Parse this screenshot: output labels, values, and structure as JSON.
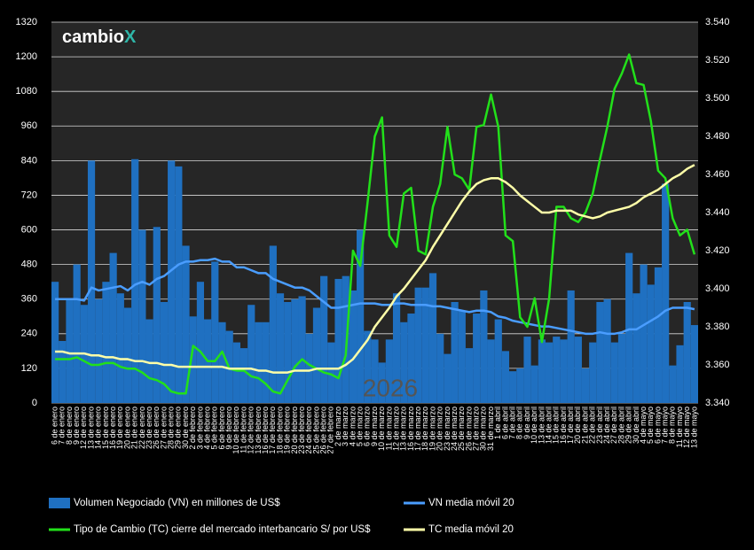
{
  "chart_data": {
    "type": "bar",
    "logo_text": "cambio",
    "logo_mark": "X",
    "annotation": "2026",
    "categories": [
      "6 de enero",
      "7 de enero",
      "8 de enero",
      "9 de enero",
      "12 de enero",
      "13 de enero",
      "14 de enero",
      "15 de enero",
      "16 de enero",
      "19 de enero",
      "20 de enero",
      "21 de enero",
      "22 de enero",
      "23 de enero",
      "26 de enero",
      "27 de enero",
      "28 de enero",
      "29 de enero",
      "30 de enero",
      "2 de febrero",
      "3 de febrero",
      "4 de febrero",
      "5 de febrero",
      "6 de febrero",
      "9 de febrero",
      "10 de febrero",
      "11 de febrero",
      "12 de febrero",
      "13 de febrero",
      "16 de febrero",
      "17 de febrero",
      "18 de febrero",
      "19 de febrero",
      "20 de febrero",
      "23 de febrero",
      "24 de febrero",
      "25 de febrero",
      "26 de febrero",
      "27 de febrero",
      "2 de marzo",
      "3 de marzo",
      "4 de marzo",
      "5 de marzo",
      "6 de marzo",
      "9 de marzo",
      "10 de marzo",
      "11 de marzo",
      "12 de marzo",
      "13 de marzo",
      "16 de marzo",
      "17 de marzo",
      "18 de marzo",
      "19 de marzo",
      "20 de marzo",
      "23 de marzo",
      "24 de marzo",
      "25 de marzo",
      "26 de marzo",
      "27 de marzo",
      "30 de marzo",
      "31 de marzo",
      "1 de abril",
      "6 de abril",
      "7 de abril",
      "8 de abril",
      "9 de abril",
      "10 de abril",
      "13 de abril",
      "14 de abril",
      "15 de abril",
      "16 de abril",
      "17 de abril",
      "20 de abril",
      "21 de abril",
      "22 de abril",
      "23 de abril",
      "24 de abril",
      "27 de abril",
      "28 de abril",
      "29 de abril",
      "30 de abril",
      "4 de mayo",
      "5 de mayo",
      "6 de mayo",
      "7 de mayo",
      "8 de mayo",
      "11 de mayo",
      "12 de mayo",
      "13 de mayo"
    ],
    "series": [
      {
        "name": "Volumen Negociado (VN) en millones de US$",
        "type": "bar",
        "axis": "y",
        "color": "#1f70c1",
        "values": [
          420,
          215,
          360,
          480,
          340,
          840,
          360,
          420,
          520,
          380,
          330,
          845,
          600,
          290,
          610,
          350,
          840,
          820,
          545,
          300,
          420,
          290,
          490,
          280,
          250,
          210,
          190,
          340,
          280,
          280,
          545,
          380,
          350,
          360,
          370,
          240,
          330,
          440,
          210,
          430,
          440,
          390,
          600,
          250,
          220,
          140,
          220,
          380,
          280,
          310,
          400,
          400,
          450,
          240,
          170,
          350,
          320,
          190,
          310,
          390,
          220,
          290,
          180,
          110,
          120,
          230,
          130,
          220,
          210,
          230,
          220,
          390,
          230,
          120,
          210,
          350,
          360,
          210,
          240,
          520,
          380,
          480,
          410,
          470,
          760,
          130,
          200,
          350,
          270
        ]
      },
      {
        "name": "VN media móvil 20",
        "type": "line",
        "axis": "y",
        "color": "#4a9dff",
        "values": [
          360,
          360,
          360,
          360,
          355,
          400,
          390,
          395,
          400,
          405,
          390,
          410,
          420,
          410,
          430,
          440,
          460,
          480,
          490,
          490,
          495,
          495,
          500,
          490,
          490,
          470,
          470,
          460,
          450,
          450,
          430,
          420,
          410,
          400,
          400,
          390,
          370,
          350,
          330,
          330,
          335,
          340,
          345,
          345,
          345,
          340,
          340,
          345,
          345,
          340,
          340,
          340,
          335,
          335,
          330,
          325,
          320,
          315,
          320,
          320,
          315,
          300,
          295,
          285,
          280,
          275,
          270,
          265,
          265,
          260,
          255,
          250,
          245,
          240,
          240,
          245,
          240,
          240,
          245,
          255,
          255,
          270,
          285,
          300,
          320,
          330,
          330,
          330,
          325
        ]
      },
      {
        "name": "Tipo de Cambio (TC) cierre del mercado interbancario S/ por US$",
        "type": "line",
        "axis": "y2",
        "color": "#22e01a",
        "values": [
          3.363,
          3.363,
          3.363,
          3.364,
          3.362,
          3.36,
          3.36,
          3.361,
          3.361,
          3.359,
          3.358,
          3.358,
          3.356,
          3.353,
          3.352,
          3.35,
          3.346,
          3.345,
          3.345,
          3.37,
          3.367,
          3.362,
          3.362,
          3.367,
          3.358,
          3.357,
          3.357,
          3.354,
          3.353,
          3.35,
          3.346,
          3.345,
          3.352,
          3.359,
          3.363,
          3.36,
          3.358,
          3.356,
          3.355,
          3.353,
          3.365,
          3.42,
          3.412,
          3.445,
          3.48,
          3.49,
          3.428,
          3.422,
          3.45,
          3.453,
          3.42,
          3.418,
          3.443,
          3.455,
          3.485,
          3.46,
          3.458,
          3.452,
          3.485,
          3.486,
          3.502,
          3.485,
          3.428,
          3.425,
          3.385,
          3.38,
          3.395,
          3.372,
          3.395,
          3.443,
          3.443,
          3.437,
          3.435,
          3.44,
          3.45,
          3.468,
          3.485,
          3.505,
          3.513,
          3.523,
          3.508,
          3.507,
          3.488,
          3.462,
          3.458,
          3.437,
          3.428,
          3.431,
          3.418
        ]
      },
      {
        "name": "TC media móvil 20",
        "type": "line",
        "axis": "y2",
        "color": "#ffffa8",
        "values": [
          3.367,
          3.367,
          3.366,
          3.366,
          3.366,
          3.365,
          3.365,
          3.364,
          3.364,
          3.363,
          3.363,
          3.362,
          3.362,
          3.361,
          3.361,
          3.36,
          3.36,
          3.359,
          3.359,
          3.359,
          3.359,
          3.359,
          3.359,
          3.359,
          3.358,
          3.358,
          3.358,
          3.358,
          3.357,
          3.357,
          3.356,
          3.356,
          3.356,
          3.357,
          3.357,
          3.357,
          3.358,
          3.358,
          3.358,
          3.358,
          3.36,
          3.363,
          3.368,
          3.373,
          3.38,
          3.385,
          3.39,
          3.396,
          3.4,
          3.405,
          3.41,
          3.415,
          3.422,
          3.428,
          3.434,
          3.44,
          3.446,
          3.451,
          3.455,
          3.457,
          3.458,
          3.458,
          3.456,
          3.453,
          3.449,
          3.446,
          3.443,
          3.44,
          3.44,
          3.441,
          3.441,
          3.441,
          3.439,
          3.438,
          3.437,
          3.438,
          3.44,
          3.441,
          3.442,
          3.443,
          3.445,
          3.448,
          3.45,
          3.452,
          3.455,
          3.458,
          3.46,
          3.463,
          3.465
        ]
      }
    ],
    "ylim": [
      0,
      1320
    ],
    "yticks": [
      0,
      120,
      240,
      360,
      480,
      600,
      720,
      840,
      960,
      1080,
      1200,
      1320
    ],
    "y2lim": [
      3.34,
      3.54
    ],
    "y2ticks": [
      {
        "value": 3.34,
        "label": "3.340"
      },
      {
        "value": 3.36,
        "label": "3.360"
      },
      {
        "value": 3.38,
        "label": "3.380"
      },
      {
        "value": 3.4,
        "label": "3.400"
      },
      {
        "value": 3.42,
        "label": "3.420"
      },
      {
        "value": 3.44,
        "label": "3.440"
      },
      {
        "value": 3.46,
        "label": "3.460"
      },
      {
        "value": 3.48,
        "label": "3.480"
      },
      {
        "value": 3.5,
        "label": "3.500"
      },
      {
        "value": 3.52,
        "label": "3.520"
      },
      {
        "value": 3.54,
        "label": "3.540"
      }
    ],
    "grid": true
  }
}
